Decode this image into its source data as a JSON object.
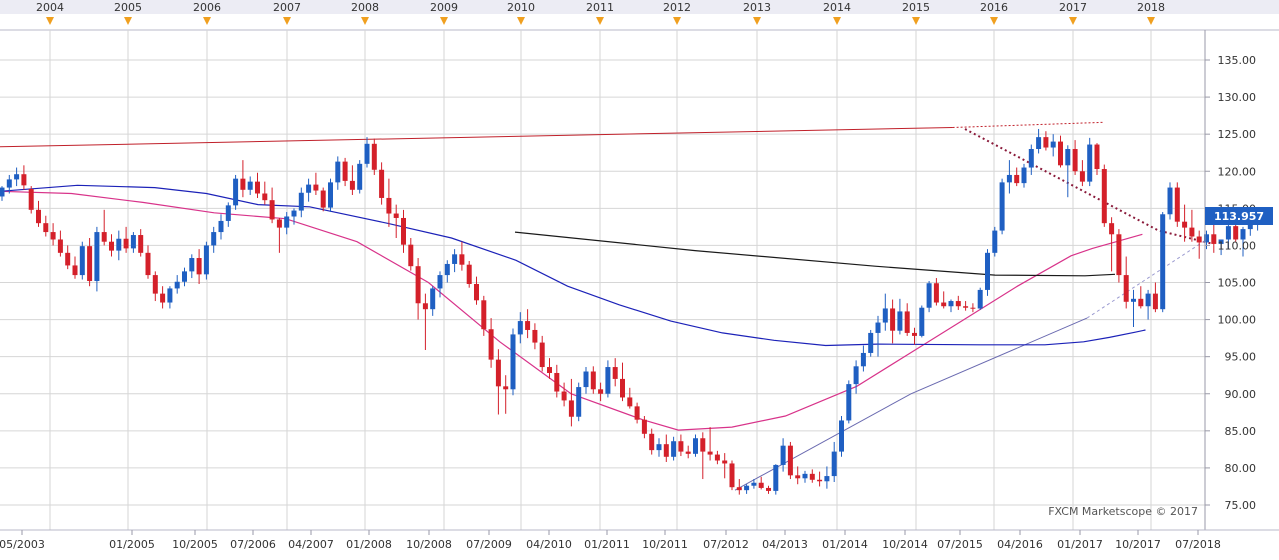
{
  "chart_data": {
    "type": "candlestick",
    "watermark": "FXCM Marketscope © 2017",
    "last_price": "113.957",
    "ylim": [
      73.5,
      140
    ],
    "y_ticks": [
      75,
      80,
      85,
      90,
      95,
      100,
      105,
      110,
      115,
      120,
      125,
      130,
      135
    ],
    "y_tick_labels": [
      "75.00",
      "80.00",
      "85.00",
      "90.00",
      "95.00",
      "100.00",
      "105.00",
      "110.00",
      "115.00",
      "120.00",
      "125.00",
      "130.00",
      "135.00"
    ],
    "top_year_labels": [
      "2004",
      "2005",
      "2006",
      "2007",
      "2008",
      "2009",
      "2010",
      "2011",
      "2012",
      "2013",
      "2014",
      "2015",
      "2016",
      "2017",
      "2018"
    ],
    "x_labels": [
      "05/2003",
      "01/2005",
      "10/2005",
      "07/2006",
      "04/2007",
      "01/2008",
      "10/2008",
      "07/2009",
      "04/2010",
      "01/2011",
      "10/2011",
      "07/2012",
      "04/2013",
      "01/2014",
      "10/2014",
      "07/2015",
      "04/2016",
      "01/2017",
      "10/2017",
      "07/2018"
    ],
    "grid": true,
    "colors": {
      "up": "#1f5fc2",
      "down": "#d4202a",
      "ma_pink": "#d8338a",
      "ma_blue": "#1c22b8",
      "ma_black": "#1a1a1a",
      "resistance": "#c0202a",
      "trendline": "#8a1a3a",
      "support": "#6a6ab0",
      "marker": "#f0a020",
      "grid": "#d6d6d6",
      "price_box": "#1f5fc2"
    },
    "candles": [
      [
        116.6,
        118.0,
        116.0,
        117.8
      ],
      [
        117.8,
        119.5,
        117.0,
        118.9
      ],
      [
        118.9,
        120.5,
        118.0,
        119.6
      ],
      [
        119.6,
        120.8,
        117.5,
        118.1
      ],
      [
        117.6,
        118.0,
        114.3,
        114.8
      ],
      [
        114.8,
        116.0,
        112.5,
        113.0
      ],
      [
        113.0,
        114.0,
        111.2,
        111.8
      ],
      [
        111.8,
        113.0,
        110.0,
        110.8
      ],
      [
        110.8,
        112.0,
        108.5,
        109.0
      ],
      [
        109.0,
        110.0,
        106.8,
        107.3
      ],
      [
        107.3,
        108.5,
        105.5,
        106.0
      ],
      [
        106.0,
        110.5,
        105.4,
        109.9
      ],
      [
        109.9,
        111.0,
        104.5,
        105.2
      ],
      [
        105.2,
        112.5,
        103.8,
        111.8
      ],
      [
        111.8,
        114.8,
        110.0,
        110.5
      ],
      [
        110.5,
        111.5,
        108.5,
        109.3
      ],
      [
        109.3,
        112.0,
        108.0,
        110.9
      ],
      [
        110.9,
        112.5,
        109.0,
        109.6
      ],
      [
        109.6,
        111.8,
        109.0,
        111.4
      ],
      [
        111.4,
        112.2,
        108.5,
        109.0
      ],
      [
        109.0,
        110.0,
        105.5,
        106.0
      ],
      [
        106.0,
        106.5,
        102.5,
        103.5
      ],
      [
        103.5,
        104.5,
        101.5,
        102.3
      ],
      [
        102.3,
        104.5,
        101.5,
        104.2
      ],
      [
        104.2,
        106.0,
        103.5,
        105.1
      ],
      [
        105.1,
        107.0,
        104.5,
        106.5
      ],
      [
        106.5,
        108.8,
        105.6,
        108.3
      ],
      [
        108.3,
        109.5,
        104.8,
        106.1
      ],
      [
        106.1,
        110.5,
        105.4,
        110.0
      ],
      [
        110.0,
        112.5,
        109.0,
        111.8
      ],
      [
        111.8,
        114.2,
        110.8,
        113.3
      ],
      [
        113.3,
        115.8,
        112.5,
        115.4
      ],
      [
        115.4,
        119.5,
        114.8,
        119.0
      ],
      [
        119.0,
        121.5,
        116.5,
        117.5
      ],
      [
        117.5,
        119.3,
        116.8,
        118.6
      ],
      [
        118.6,
        119.8,
        116.4,
        117.0
      ],
      [
        117.0,
        118.6,
        115.5,
        116.1
      ],
      [
        116.1,
        117.8,
        113.0,
        113.5
      ],
      [
        113.5,
        113.7,
        109.0,
        112.4
      ],
      [
        112.4,
        114.5,
        111.5,
        113.9
      ],
      [
        113.9,
        115.0,
        112.8,
        114.7
      ],
      [
        114.7,
        117.8,
        113.8,
        117.1
      ],
      [
        117.1,
        119.0,
        115.9,
        118.2
      ],
      [
        118.2,
        119.8,
        116.8,
        117.4
      ],
      [
        117.4,
        117.8,
        114.6,
        115.1
      ],
      [
        115.1,
        119.0,
        114.5,
        118.5
      ],
      [
        118.5,
        122.0,
        117.5,
        121.3
      ],
      [
        121.3,
        121.8,
        118.0,
        118.7
      ],
      [
        118.7,
        120.8,
        116.8,
        117.5
      ],
      [
        117.5,
        121.5,
        117.0,
        121.0
      ],
      [
        121.0,
        124.6,
        120.5,
        123.7
      ],
      [
        123.7,
        124.4,
        119.5,
        120.2
      ],
      [
        120.2,
        121.2,
        115.5,
        116.4
      ],
      [
        116.4,
        119.0,
        112.5,
        114.3
      ],
      [
        114.3,
        115.5,
        111.0,
        113.7
      ],
      [
        113.7,
        114.8,
        109.0,
        110.1
      ],
      [
        110.1,
        111.0,
        106.6,
        107.2
      ],
      [
        107.2,
        108.3,
        100.0,
        102.2
      ],
      [
        102.2,
        103.5,
        95.9,
        101.4
      ],
      [
        101.4,
        104.5,
        100.5,
        104.2
      ],
      [
        104.2,
        106.5,
        103.0,
        106.0
      ],
      [
        106.0,
        108.0,
        105.0,
        107.5
      ],
      [
        107.5,
        109.5,
        106.4,
        108.8
      ],
      [
        108.8,
        110.5,
        106.6,
        107.4
      ],
      [
        107.4,
        107.9,
        104.3,
        104.8
      ],
      [
        104.8,
        105.8,
        102.0,
        102.6
      ],
      [
        102.6,
        103.2,
        97.8,
        98.7
      ],
      [
        98.7,
        100.2,
        93.5,
        94.6
      ],
      [
        94.6,
        96.0,
        87.2,
        91.0
      ],
      [
        91.0,
        92.5,
        87.3,
        90.6
      ],
      [
        90.6,
        98.8,
        89.8,
        98.0
      ],
      [
        98.0,
        101.0,
        96.8,
        99.8
      ],
      [
        99.8,
        101.4,
        97.5,
        98.6
      ],
      [
        98.6,
        99.5,
        96.0,
        96.9
      ],
      [
        96.9,
        97.8,
        93.0,
        93.6
      ],
      [
        93.6,
        94.8,
        92.0,
        92.8
      ],
      [
        92.8,
        93.9,
        89.5,
        90.3
      ],
      [
        90.3,
        91.5,
        88.3,
        89.1
      ],
      [
        89.1,
        92.0,
        85.6,
        86.9
      ],
      [
        86.9,
        91.5,
        86.3,
        90.9
      ],
      [
        90.9,
        93.6,
        90.0,
        93.0
      ],
      [
        93.0,
        93.7,
        90.0,
        90.6
      ],
      [
        90.6,
        91.5,
        89.0,
        90.0
      ],
      [
        90.0,
        94.5,
        89.5,
        93.6
      ],
      [
        93.6,
        94.8,
        91.0,
        92.0
      ],
      [
        92.0,
        94.2,
        89.0,
        89.5
      ],
      [
        89.5,
        90.8,
        88.0,
        88.3
      ],
      [
        88.3,
        88.8,
        86.0,
        86.5
      ],
      [
        86.5,
        87.0,
        84.0,
        84.6
      ],
      [
        84.6,
        85.3,
        81.8,
        82.4
      ],
      [
        82.4,
        84.0,
        81.5,
        83.2
      ],
      [
        83.2,
        84.5,
        80.8,
        81.5
      ],
      [
        81.5,
        84.2,
        81.0,
        83.6
      ],
      [
        83.6,
        84.5,
        81.6,
        82.2
      ],
      [
        82.2,
        83.0,
        81.3,
        81.9
      ],
      [
        81.9,
        84.5,
        81.5,
        84.0
      ],
      [
        84.0,
        84.8,
        78.5,
        82.2
      ],
      [
        82.2,
        85.5,
        81.0,
        81.8
      ],
      [
        81.8,
        82.3,
        80.5,
        81.0
      ],
      [
        81.0,
        82.0,
        78.6,
        80.6
      ],
      [
        80.6,
        81.0,
        77.0,
        77.4
      ],
      [
        77.4,
        78.5,
        76.4,
        77.0
      ],
      [
        77.0,
        77.8,
        76.5,
        77.6
      ],
      [
        77.6,
        78.5,
        77.2,
        78.0
      ],
      [
        78.0,
        78.8,
        77.1,
        77.3
      ],
      [
        77.3,
        77.6,
        76.5,
        76.9
      ],
      [
        76.9,
        80.5,
        76.4,
        80.4
      ],
      [
        80.4,
        84.0,
        79.5,
        83.0
      ],
      [
        83.0,
        83.5,
        78.5,
        79.0
      ],
      [
        79.0,
        80.2,
        77.8,
        78.6
      ],
      [
        78.6,
        79.6,
        78.0,
        79.2
      ],
      [
        79.2,
        79.8,
        78.0,
        78.4
      ],
      [
        78.4,
        79.5,
        77.5,
        78.2
      ],
      [
        78.2,
        80.2,
        77.2,
        78.9
      ],
      [
        78.9,
        83.5,
        78.1,
        82.2
      ],
      [
        82.2,
        87.0,
        81.5,
        86.4
      ],
      [
        86.4,
        91.8,
        86.0,
        91.3
      ],
      [
        91.3,
        94.5,
        90.0,
        93.7
      ],
      [
        93.7,
        96.5,
        93.0,
        95.5
      ],
      [
        95.5,
        98.6,
        95.0,
        98.2
      ],
      [
        98.2,
        100.5,
        95.0,
        99.6
      ],
      [
        99.6,
        103.5,
        98.5,
        101.5
      ],
      [
        101.5,
        102.7,
        96.8,
        98.5
      ],
      [
        98.5,
        102.8,
        98.0,
        101.1
      ],
      [
        101.1,
        102.2,
        97.8,
        98.2
      ],
      [
        98.2,
        98.9,
        96.6,
        97.8
      ],
      [
        97.8,
        101.9,
        97.6,
        101.6
      ],
      [
        101.6,
        105.2,
        101.0,
        104.9
      ],
      [
        104.9,
        105.6,
        101.9,
        102.3
      ],
      [
        102.3,
        103.8,
        101.5,
        101.8
      ],
      [
        101.8,
        102.7,
        101.0,
        102.5
      ],
      [
        102.5,
        103.2,
        101.3,
        101.8
      ],
      [
        101.8,
        102.5,
        101.2,
        101.6
      ],
      [
        101.6,
        102.2,
        101.0,
        101.5
      ],
      [
        101.5,
        104.3,
        101.3,
        104.0
      ],
      [
        104.0,
        109.5,
        103.2,
        109.0
      ],
      [
        109.0,
        112.5,
        108.5,
        112.0
      ],
      [
        112.0,
        119.0,
        111.5,
        118.5
      ],
      [
        118.5,
        121.5,
        117.0,
        119.5
      ],
      [
        119.5,
        120.5,
        118.0,
        118.4
      ],
      [
        118.4,
        121.0,
        117.8,
        120.5
      ],
      [
        120.5,
        123.6,
        119.5,
        123.0
      ],
      [
        123.0,
        125.7,
        122.4,
        124.6
      ],
      [
        124.6,
        125.4,
        122.8,
        123.2
      ],
      [
        123.2,
        125.0,
        122.0,
        124.0
      ],
      [
        124.0,
        124.8,
        120.5,
        120.8
      ],
      [
        120.8,
        123.5,
        116.5,
        123.0
      ],
      [
        123.0,
        124.2,
        119.5,
        120.0
      ],
      [
        120.0,
        121.5,
        118.0,
        118.6
      ],
      [
        118.6,
        124.5,
        118.0,
        123.6
      ],
      [
        123.6,
        123.8,
        119.5,
        120.3
      ],
      [
        120.3,
        120.9,
        112.5,
        113.0
      ],
      [
        113.0,
        113.8,
        106.5,
        111.5
      ],
      [
        111.5,
        112.2,
        105.0,
        106.0
      ],
      [
        106.0,
        108.5,
        101.5,
        102.4
      ],
      [
        102.4,
        104.0,
        99.0,
        102.8
      ],
      [
        102.8,
        104.5,
        101.5,
        101.8
      ],
      [
        101.8,
        104.0,
        100.0,
        103.5
      ],
      [
        103.5,
        105.0,
        101.0,
        101.4
      ],
      [
        101.4,
        114.5,
        101.0,
        114.2
      ],
      [
        114.2,
        118.5,
        113.5,
        117.8
      ],
      [
        117.8,
        118.5,
        112.5,
        113.2
      ],
      [
        113.2,
        115.5,
        110.5,
        112.4
      ],
      [
        112.4,
        114.8,
        110.5,
        111.2
      ],
      [
        111.2,
        112.0,
        108.2,
        110.4
      ],
      [
        110.4,
        112.0,
        109.5,
        111.5
      ],
      [
        111.5,
        113.5,
        109.0,
        110.2
      ],
      [
        110.2,
        110.8,
        108.7,
        110.8
      ],
      [
        110.8,
        114.0,
        109.5,
        112.6
      ],
      [
        112.6,
        114.5,
        110.5,
        110.8
      ],
      [
        110.8,
        112.5,
        108.5,
        112.2
      ],
      [
        112.2,
        113.5,
        111.3,
        113.0
      ],
      [
        113.0,
        114.2,
        112.0,
        113.957
      ]
    ],
    "ma_pink": [
      [
        0,
        117.3
      ],
      [
        20,
        117.0
      ],
      [
        40,
        115.8
      ],
      [
        60,
        114.4
      ],
      [
        80,
        113.6
      ],
      [
        100,
        110.5
      ],
      [
        120,
        105.0
      ],
      [
        140,
        97.0
      ],
      [
        160,
        90.0
      ],
      [
        180,
        86.5
      ],
      [
        190,
        85.1
      ],
      [
        205,
        85.5
      ],
      [
        220,
        87.0
      ],
      [
        240,
        91.0
      ],
      [
        255,
        95.5
      ],
      [
        270,
        100.0
      ],
      [
        285,
        104.5
      ],
      [
        300,
        108.6
      ],
      [
        306,
        109.6
      ],
      [
        320,
        111.5
      ]
    ],
    "ma_blue": [
      [
        0,
        117.3
      ],
      [
        30,
        118.1
      ],
      [
        60,
        117.8
      ],
      [
        80,
        117.0
      ],
      [
        100,
        115.5
      ],
      [
        120,
        115.2
      ],
      [
        150,
        113.0
      ],
      [
        175,
        111.0
      ],
      [
        200,
        108.0
      ],
      [
        220,
        104.5
      ],
      [
        240,
        102.0
      ],
      [
        260,
        99.8
      ],
      [
        280,
        98.2
      ],
      [
        300,
        97.2
      ],
      [
        320,
        96.5
      ],
      [
        340,
        96.7
      ],
      [
        380,
        96.6
      ],
      [
        405,
        96.6
      ],
      [
        420,
        97.0
      ],
      [
        430,
        97.6
      ],
      [
        440,
        98.3
      ],
      [
        444,
        98.6
      ]
    ],
    "ma_black": [
      [
        0,
        111.8
      ],
      [
        60,
        109.3
      ],
      [
        120,
        107.2
      ],
      [
        160,
        106.0
      ],
      [
        190,
        105.9
      ],
      [
        200,
        106.1
      ]
    ],
    "resistance_line": [
      [
        0,
        123.3
      ],
      [
        220,
        125.9
      ],
      [
        255,
        126.6
      ]
    ],
    "downtrend_line": [
      [
        0,
        125.7
      ],
      [
        160,
        112.0
      ],
      [
        205,
        110.2
      ]
    ],
    "uptrend_line": [
      [
        0,
        77.0
      ],
      [
        100,
        90.0
      ],
      [
        200,
        100.2
      ],
      [
        268,
        110.8
      ]
    ]
  }
}
